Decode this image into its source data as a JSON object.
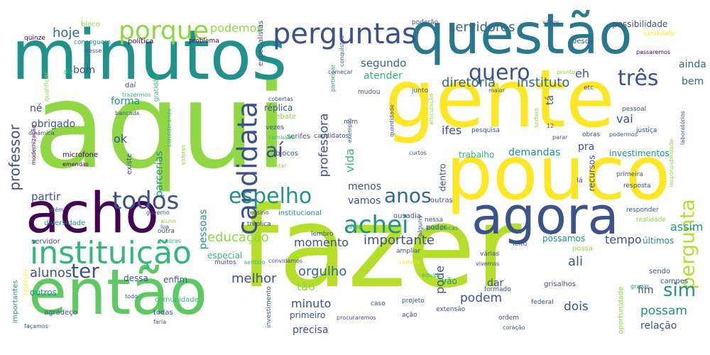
{
  "palette": {
    "dark_purple": "#440154",
    "indigo": "#3b528b",
    "blue": "#31688e",
    "teal": "#21918c",
    "green": "#35b779",
    "light_green": "#90d743",
    "yellow": "#fde725"
  },
  "words": {
    "aqui": "aqui",
    "fazer": "fazer",
    "gente": "gente",
    "pouco": "pouco",
    "minutos": "minutos",
    "questao": "questão",
    "entao": "então",
    "acho": "acho",
    "agora": "agora",
    "instituicao": "instituição",
    "perguntas": "perguntas",
    "porque": "porque",
    "candidata": "candidata",
    "espelho": "espelho",
    "todos": "todos",
    "achei": "achei",
    "anos": "anos",
    "quero": "quero",
    "tres": "três",
    "pergunta": "pergunta",
    "ter": "ter",
    "ai": "aí",
    "servidores": "servidores",
    "instituto": "instituto",
    "diretoria": "diretoria",
    "hoje": "hoje",
    "podemos": "podemos",
    "segundo": "segundo",
    "atender": "atender",
    "bom": "bom",
    "forma": "forma",
    "obrigado": "obrigado",
    "ok": "ok",
    "professor": "professor",
    "partir": "partir",
    "professora": "professora",
    "vida": "vida",
    "ifes": "ifes",
    "vai": "vai",
    "pra": "pra",
    "demandas": "demandas",
    "trabalho": "trabalho",
    "investimentos": "investimentos",
    "possibilidade": "possibilidade",
    "ainda": "ainda",
    "bem": "bem",
    "eh": "eh",
    "ta": "tá",
    "importante": "importante",
    "momento": "momento",
    "educacao": "educação",
    "assim": "assim",
    "tempo": "tempo",
    "alunos": "alunos",
    "melhor": "melhor",
    "orgulho": "orgulho",
    "tao": "tão",
    "minuto": "minuto",
    "primeiro": "primeiro",
    "precisa": "precisa",
    "podem": "podem",
    "possam": "possam",
    "dois": "dois",
    "sim": "sim",
    "ali": "ali",
    "relacao": "relação",
    "pode": "pode",
    "menos": "menos",
    "vamos": "vamos",
    "pessoas": "pessoas",
    "parcerias": "parcerias",
    "recursos": "recursos",
    "dentro": "dentro",
    "possamos": "possamos",
    "ultimos": "últimos",
    "dar": "dar",
    "vao": "vão",
    "outros": "outros",
    "enfim": "enfim",
    "dessa": "dessa",
    "especial": "especial",
    "comunidade": "comunidade",
    "todas": "todas",
    "faria": "faria",
    "agradeco": "agradeço",
    "importantes": "importantes",
    "fim": "fim",
    "campes": "campes",
    "sendo": "sendo",
    "gracas": "graças",
    "servidor": "servidor",
    "ne": "né",
    "replica": "réplica",
    "debate": "debate",
    "bloco": "bloco",
    "blocos": "blocos",
    "quinze": "quinze",
    "politica": "política",
    "problema": "problema",
    "especialistas": "especialistas",
    "participar": "participar",
    "poderao": "poderão",
    "desde": "desde",
    "candidato": "candidato",
    "varios": "vários",
    "passaremos": "passaremos",
    "conseguem": "conseguem",
    "desse": "desse",
    "diz": "diz",
    "dai": "daí",
    "gratidao": "gratidão",
    "trazermos": "trazermos",
    "qualificar": "qualificar",
    "bancada": "bancada",
    "dinamica": "dinâmica",
    "modernizacao": "modernização",
    "microfone": "microfone",
    "emendas": "emendas",
    "existe": "existe",
    "alem": "além",
    "diversidade": "diversidade",
    "lua": "lua",
    "governo": "governo",
    "ensino": "ensino",
    "institucional": "institucional",
    "ousadia": "ousadia",
    "poder": "poder",
    "outras": "outras",
    "nessa": "nessa",
    "bibliotecas": "bibliotecas",
    "alguns": "alguns",
    "ideia": "ideia",
    "lembro": "lembro",
    "treplica": "tréplica",
    "outra": "outra",
    "quadras": "quadras",
    "muitos": "muitos",
    "sentido": "sentido",
    "convidamos": "convidamos",
    "certeza": "certeza",
    "equipe": "equipe",
    "captacao": "captação",
    "todo": "todo",
    "facamos": "façamos",
    "investimento": "investimento",
    "caso": "caso",
    "projeto": "projeto",
    "acao": "ação",
    "procuraremos": "procuraremos",
    "extensao": "extensão",
    "ordem": "ordem",
    "coracao": "coração",
    "federal": "federal",
    "grisalhos": "grisalhos",
    "formado": "formado",
    "oportunidade": "oportunidade",
    "ampliar": "ampliar",
    "varias": "várias",
    "vivemos": "vivemos",
    "feito": "feito",
    "possa": "possa",
    "responder": "responder",
    "realidade": "realidade",
    "primeira": "primeira",
    "resposta": "resposta",
    "la": "lá",
    "responsabilidade": "responsabilidade",
    "laboratorios": "laboratórios",
    "podermos": "podermos",
    "justica": "justiça",
    "pessoal": "pessoal",
    "obras": "obras",
    "parar": "parar",
    "curtos": "curtos",
    "sentar": "sentar",
    "pesquisa": "pesquisa",
    "quantidade": "quantidade",
    "articulacao": "articulação",
    "sorteio": "sorteio",
    "doze": "12",
    "mudou": "mudou",
    "exemplo": "exemplo",
    "mim": "mim",
    "junto": "junto",
    "maior": "maior",
    "etc": "etc",
    "pronto": "pronto",
    "conquistou": "conquistou",
    "comecar": "começar",
    "serifes": "serifes",
    "cobertas": "cobertas",
    "vezes": "vezes",
    "candidatos": "candidatos",
    "comissao": "comissão",
    "considerando": "considerando",
    "valores": "valores",
    "aluno": "aluno"
  }
}
